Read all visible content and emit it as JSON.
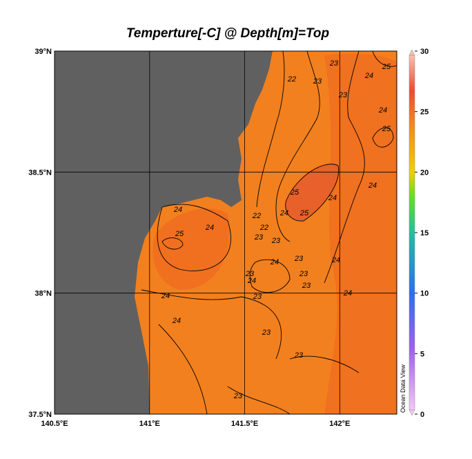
{
  "map": {
    "title": "Temperture[-C] @ Depth[m]=Top",
    "lon_range": [
      140.5,
      142.3
    ],
    "lat_range": [
      37.5,
      39
    ],
    "lon_ticks": [
      {
        "value": 140.5,
        "label": "140.5°E"
      },
      {
        "value": 141,
        "label": "141°E"
      },
      {
        "value": 141.5,
        "label": "141.5°E"
      },
      {
        "value": 142,
        "label": "142°E"
      }
    ],
    "lat_ticks": [
      {
        "value": 37.5,
        "label": "37.5°N"
      },
      {
        "value": 38,
        "label": "38°N"
      },
      {
        "value": 38.5,
        "label": "38.5°N"
      },
      {
        "value": 39,
        "label": "39°N"
      }
    ],
    "colorbar": {
      "lim": [
        0,
        30
      ],
      "ticks": [
        0,
        5,
        10,
        15,
        20,
        25,
        30
      ]
    },
    "contour_labels": [
      "22",
      "23",
      "25",
      "23",
      "24",
      "23",
      "24",
      "25",
      "25",
      "24",
      "24",
      "24",
      "25",
      "24",
      "22",
      "22",
      "25",
      "24",
      "23",
      "23",
      "23",
      "24",
      "24",
      "23",
      "24",
      "23",
      "23",
      "24",
      "24",
      "23",
      "24",
      "23",
      "23",
      "23"
    ],
    "credit": "Ocean Data View"
  }
}
